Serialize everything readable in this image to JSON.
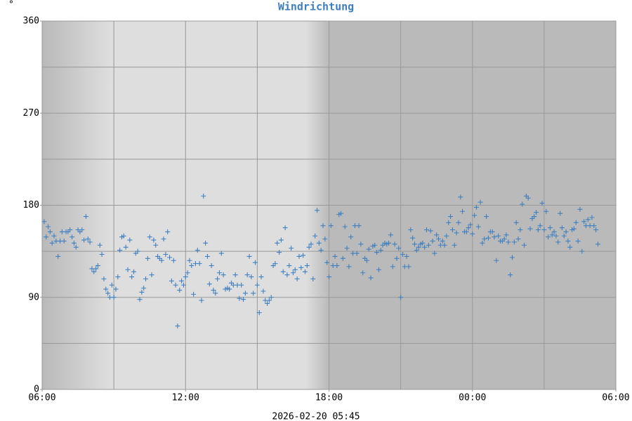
{
  "chart_data": {
    "type": "scatter",
    "title": "Windrichtung",
    "y_label": "°",
    "footer": "2026-02-20 05:45",
    "color": "#3f7fbf",
    "xlim": [
      0,
      1440
    ],
    "xticks": [
      {
        "value": 0,
        "label": "06:00"
      },
      {
        "value": 360,
        "label": "12:00"
      },
      {
        "value": 720,
        "label": "18:00"
      },
      {
        "value": 1080,
        "label": "00:00"
      },
      {
        "value": 1440,
        "label": "06:00"
      }
    ],
    "x_gridlines": [
      180,
      360,
      540,
      720,
      900,
      1080,
      1260
    ],
    "ylim": [
      0,
      360
    ],
    "yticks": [
      0,
      90,
      180,
      270,
      360
    ],
    "y_gridlines": [
      45,
      90,
      135,
      180,
      225,
      270,
      315
    ],
    "grid": true,
    "x": [
      5,
      10,
      15,
      20,
      25,
      30,
      35,
      40,
      45,
      50,
      55,
      60,
      65,
      70,
      75,
      80,
      85,
      90,
      95,
      100,
      105,
      110,
      115,
      120,
      125,
      130,
      135,
      140,
      145,
      150,
      155,
      160,
      165,
      170,
      175,
      180,
      185,
      190,
      195,
      200,
      205,
      210,
      215,
      220,
      225,
      230,
      235,
      240,
      245,
      250,
      255,
      260,
      265,
      270,
      275,
      280,
      285,
      290,
      295,
      300,
      305,
      310,
      315,
      320,
      325,
      330,
      335,
      340,
      345,
      350,
      355,
      360,
      365,
      370,
      375,
      380,
      385,
      390,
      395,
      400,
      405,
      410,
      415,
      420,
      425,
      430,
      435,
      440,
      445,
      450,
      455,
      460,
      465,
      470,
      475,
      480,
      485,
      490,
      495,
      500,
      505,
      510,
      515,
      520,
      525,
      530,
      535,
      540,
      545,
      550,
      555,
      560,
      565,
      570,
      575,
      580,
      585,
      590,
      595,
      600,
      605,
      610,
      615,
      620,
      625,
      630,
      635,
      640,
      645,
      650,
      655,
      660,
      665,
      670,
      675,
      680,
      685,
      690,
      695,
      700,
      705,
      710,
      715,
      720,
      725,
      730,
      735,
      740,
      745,
      750,
      755,
      760,
      765,
      770,
      775,
      780,
      785,
      790,
      795,
      800,
      805,
      810,
      815,
      820,
      825,
      830,
      835,
      840,
      845,
      850,
      855,
      860,
      865,
      870,
      875,
      880,
      885,
      890,
      895,
      900,
      905,
      910,
      915,
      920,
      925,
      930,
      935,
      940,
      945,
      950,
      955,
      960,
      965,
      970,
      975,
      980,
      985,
      990,
      995,
      1000,
      1005,
      1010,
      1015,
      1020,
      1025,
      1030,
      1035,
      1040,
      1045,
      1050,
      1055,
      1060,
      1065,
      1070,
      1075,
      1080,
      1085,
      1090,
      1095,
      1100,
      1105,
      1110,
      1115,
      1120,
      1125,
      1130,
      1135,
      1140,
      1145,
      1150,
      1155,
      1160,
      1165,
      1170,
      1175,
      1180,
      1185,
      1190,
      1195,
      1200,
      1205,
      1210,
      1215,
      1220,
      1225,
      1230,
      1235,
      1240,
      1245,
      1250,
      1255,
      1260,
      1265,
      1270,
      1275,
      1280,
      1285,
      1290,
      1295,
      1300,
      1305,
      1310,
      1315,
      1320,
      1325,
      1330,
      1335,
      1340,
      1345,
      1350,
      1355,
      1360,
      1365,
      1370,
      1375,
      1380,
      1385,
      1390,
      1395
    ],
    "values": [
      164,
      149,
      159,
      154,
      143,
      150,
      145,
      130,
      145,
      154,
      145,
      154,
      154,
      156,
      149,
      143,
      139,
      156,
      154,
      156,
      146,
      169,
      147,
      144,
      118,
      115,
      118,
      121,
      141,
      132,
      108,
      98,
      94,
      90,
      102,
      90,
      98,
      110,
      136,
      149,
      150,
      139,
      117,
      146,
      110,
      115,
      133,
      135,
      88,
      95,
      99,
      108,
      128,
      149,
      112,
      146,
      141,
      130,
      128,
      126,
      147,
      132,
      154,
      129,
      106,
      126,
      102,
      62,
      97,
      106,
      102,
      110,
      114,
      126,
      121,
      93,
      123,
      136,
      123,
      87,
      189,
      143,
      130,
      103,
      121,
      97,
      94,
      108,
      114,
      133,
      112,
      98,
      99,
      98,
      104,
      102,
      112,
      102,
      89,
      102,
      88,
      94,
      112,
      130,
      110,
      94,
      124,
      102,
      75,
      110,
      96,
      87,
      84,
      87,
      90,
      121,
      123,
      143,
      134,
      146,
      115,
      158,
      112,
      121,
      138,
      114,
      117,
      108,
      130,
      119,
      131,
      115,
      121,
      139,
      142,
      108,
      150,
      175,
      143,
      136,
      160,
      147,
      124,
      110,
      160,
      121,
      130,
      121,
      171,
      172,
      128,
      159,
      138,
      120,
      149,
      133,
      160,
      133,
      160,
      142,
      114,
      128,
      126,
      137,
      109,
      140,
      141,
      134,
      117,
      136,
      141,
      143,
      142,
      143,
      151,
      120,
      142,
      128,
      138,
      90,
      132,
      120,
      130,
      120,
      156,
      148,
      142,
      136,
      139,
      142,
      143,
      139,
      156,
      141,
      155,
      145,
      133,
      151,
      147,
      141,
      145,
      141,
      150,
      163,
      169,
      156,
      141,
      153,
      163,
      188,
      174,
      154,
      154,
      158,
      161,
      152,
      170,
      178,
      159,
      183,
      143,
      147,
      169,
      148,
      154,
      154,
      149,
      126,
      150,
      145,
      145,
      147,
      151,
      144,
      112,
      129,
      144,
      163,
      147,
      156,
      181,
      141,
      189,
      187,
      157,
      167,
      169,
      173,
      156,
      160,
      182,
      156,
      174,
      149,
      158,
      151,
      154,
      150,
      144,
      172,
      158,
      150,
      154,
      145,
      139,
      156,
      157,
      163,
      145,
      176,
      135,
      164,
      160,
      166,
      160,
      168,
      160,
      156,
      142
    ]
  }
}
